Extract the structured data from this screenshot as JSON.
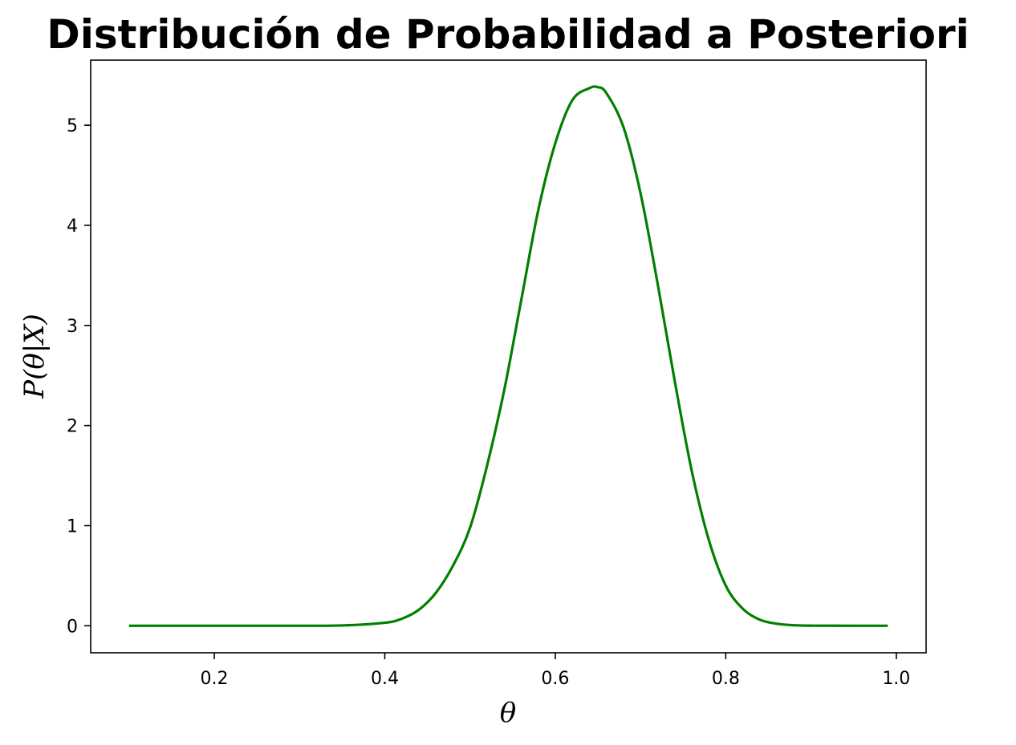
{
  "chart_data": {
    "type": "line",
    "title": "Distribución de Probabilidad a Posteriori",
    "xlabel": "θ",
    "ylabel": "P(θ|X)",
    "xlim": [
      0.055,
      1.035
    ],
    "ylim": [
      -0.27,
      5.65
    ],
    "xticks": [
      "0.2",
      "0.4",
      "0.6",
      "0.8",
      "1.0"
    ],
    "yticks": [
      "0",
      "1",
      "2",
      "3",
      "4",
      "5"
    ],
    "grid": false,
    "legend": "none",
    "series": [
      {
        "color": "#008000",
        "x": [
          0.1,
          0.2,
          0.3,
          0.35,
          0.4,
          0.42,
          0.44,
          0.46,
          0.48,
          0.5,
          0.52,
          0.54,
          0.56,
          0.58,
          0.6,
          0.62,
          0.64,
          0.65,
          0.66,
          0.68,
          0.7,
          0.72,
          0.74,
          0.76,
          0.78,
          0.8,
          0.82,
          0.84,
          0.86,
          0.88,
          0.9,
          0.95,
          0.99
        ],
        "values": [
          0.0,
          0.0,
          0.0,
          0.003,
          0.03,
          0.07,
          0.16,
          0.33,
          0.6,
          0.98,
          1.6,
          2.35,
          3.25,
          4.15,
          4.82,
          5.25,
          5.37,
          5.38,
          5.32,
          4.98,
          4.32,
          3.42,
          2.45,
          1.55,
          0.86,
          0.4,
          0.17,
          0.06,
          0.02,
          0.005,
          0.001,
          0.0,
          0.0
        ]
      }
    ]
  }
}
